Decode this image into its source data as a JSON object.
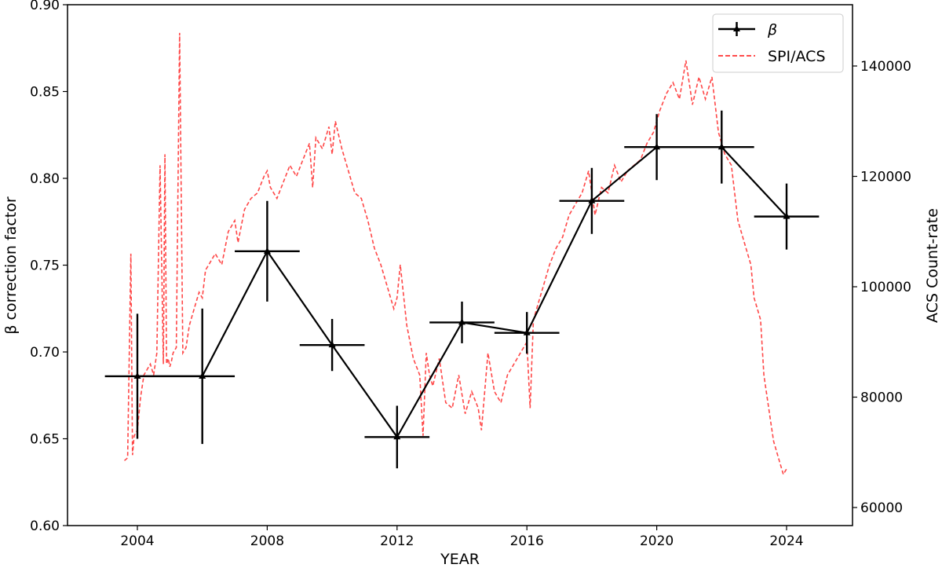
{
  "chart_data": {
    "type": "line",
    "title": "",
    "xlabel": "YEAR",
    "ylabel": "β correction factor",
    "ylabel_right": "ACS Count-rate",
    "xlim": [
      2002.3,
      2026.2
    ],
    "ylim": [
      0.6,
      0.9
    ],
    "ylim_right": [
      56000,
      150000
    ],
    "x_ticks": [
      2004,
      2008,
      2012,
      2016,
      2020,
      2024
    ],
    "y_ticks": [
      0.6,
      0.65,
      0.7,
      0.75,
      0.8,
      0.85,
      0.9
    ],
    "y_tick_labels": [
      "0.60",
      "0.65",
      "0.70",
      "0.75",
      "0.80",
      "0.85",
      "0.90"
    ],
    "y_right_ticks": [
      60000,
      80000,
      100000,
      120000,
      140000
    ],
    "grid": false,
    "legend_position": "upper right",
    "legend": [
      "β",
      "SPI/ACS"
    ],
    "series": [
      {
        "name": "β",
        "axis": "left",
        "style": "solid black line, triangle markers, x and y error bars",
        "color": "#000000",
        "x": [
          2004,
          2006,
          2008,
          2010,
          2012,
          2014,
          2016,
          2018,
          2020,
          2022,
          2024
        ],
        "values": [
          0.686,
          0.686,
          0.758,
          0.704,
          0.651,
          0.717,
          0.711,
          0.787,
          0.818,
          0.818,
          0.778
        ],
        "xerr": [
          1,
          1,
          1,
          1,
          1,
          1,
          1,
          1,
          1,
          1,
          1
        ],
        "yerr": [
          0.036,
          0.039,
          0.029,
          0.015,
          0.018,
          0.012,
          0.012,
          0.019,
          0.019,
          0.021,
          0.019
        ]
      },
      {
        "name": "SPI/ACS",
        "axis": "right",
        "style": "dashed red line",
        "color": "#ff3333",
        "x": [
          2003.6,
          2003.7,
          2003.8,
          2003.85,
          2003.9,
          2004.0,
          2004.1,
          2004.2,
          2004.3,
          2004.4,
          2004.5,
          2004.6,
          2004.7,
          2004.8,
          2004.85,
          2004.9,
          2004.95,
          2005.0,
          2005.05,
          2005.1,
          2005.2,
          2005.3,
          2005.4,
          2005.5,
          2005.55,
          2005.6,
          2005.7,
          2005.8,
          2005.9,
          2006.0,
          2006.1,
          2006.2,
          2006.4,
          2006.6,
          2006.8,
          2007.0,
          2007.1,
          2007.3,
          2007.5,
          2007.7,
          2007.9,
          2008.0,
          2008.1,
          2008.3,
          2008.5,
          2008.7,
          2008.9,
          2009.1,
          2009.3,
          2009.4,
          2009.5,
          2009.7,
          2009.9,
          2010.0,
          2010.1,
          2010.3,
          2010.5,
          2010.7,
          2010.9,
          2011.1,
          2011.3,
          2011.5,
          2011.7,
          2011.9,
          2012.0,
          2012.1,
          2012.3,
          2012.5,
          2012.7,
          2012.8,
          2012.9,
          2013.0,
          2013.1,
          2013.3,
          2013.5,
          2013.7,
          2013.9,
          2014.1,
          2014.3,
          2014.5,
          2014.6,
          2014.8,
          2015.0,
          2015.2,
          2015.4,
          2015.6,
          2015.8,
          2016.0,
          2016.1,
          2016.2,
          2016.3,
          2016.5,
          2016.7,
          2016.9,
          2017.1,
          2017.3,
          2017.5,
          2017.7,
          2017.9,
          2018.1,
          2018.3,
          2018.5,
          2018.7,
          2018.9,
          2019.1,
          2019.3,
          2019.5,
          2019.7,
          2019.9,
          2020.1,
          2020.3,
          2020.5,
          2020.7,
          2020.9,
          2021.1,
          2021.3,
          2021.5,
          2021.7,
          2021.9,
          2022.1,
          2022.3,
          2022.5,
          2022.7,
          2022.9,
          2023.0,
          2023.1,
          2023.2,
          2023.3,
          2023.4,
          2023.5,
          2023.6,
          2023.7,
          2023.8,
          2023.9,
          2024.0
        ],
        "values": [
          68500,
          69000,
          106000,
          69500,
          73000,
          74000,
          80000,
          84000,
          85000,
          86000,
          84000,
          88000,
          122000,
          86000,
          124000,
          86000,
          87000,
          85500,
          86500,
          88000,
          89000,
          146000,
          88000,
          89000,
          91000,
          93000,
          95000,
          97000,
          99000,
          98000,
          103000,
          104000,
          106000,
          104000,
          110000,
          112000,
          108000,
          114000,
          116000,
          117000,
          120000,
          121000,
          118000,
          116000,
          119000,
          122000,
          120000,
          123000,
          126000,
          118000,
          127000,
          125000,
          129000,
          124000,
          130000,
          125000,
          121000,
          117000,
          116000,
          112000,
          107000,
          104000,
          100000,
          96000,
          98000,
          104000,
          93000,
          87000,
          84000,
          73000,
          88000,
          84000,
          82000,
          87000,
          79000,
          78000,
          84000,
          77000,
          81000,
          78000,
          74000,
          88000,
          81000,
          79000,
          84000,
          86000,
          88000,
          90000,
          78000,
          94000,
          96000,
          100000,
          104000,
          107000,
          109000,
          113000,
          115000,
          117000,
          121000,
          113000,
          118000,
          117000,
          122000,
          119000,
          121000,
          122000,
          123000,
          126000,
          128000,
          132000,
          135000,
          137000,
          134000,
          141000,
          133000,
          138000,
          134000,
          138000,
          128000,
          124000,
          122000,
          112000,
          108000,
          104000,
          98000,
          96000,
          94000,
          84000,
          80000,
          76000,
          72000,
          70000,
          68000,
          66000,
          67000
        ]
      }
    ]
  },
  "axes": {
    "xlabel": "YEAR",
    "ylabel_left": "β correction factor",
    "ylabel_right": "ACS Count-rate",
    "x_ticks": [
      "2004",
      "2008",
      "2012",
      "2016",
      "2020",
      "2024"
    ],
    "y_left_ticks": [
      "0.60",
      "0.65",
      "0.70",
      "0.75",
      "0.80",
      "0.85",
      "0.90"
    ],
    "y_right_ticks": [
      "60000",
      "80000",
      "100000",
      "120000",
      "140000"
    ]
  },
  "legend": {
    "beta_label": "β",
    "acs_label": "SPI/ACS"
  },
  "colors": {
    "beta": "#000000",
    "acs": "#ff3333",
    "axis": "#000000"
  }
}
